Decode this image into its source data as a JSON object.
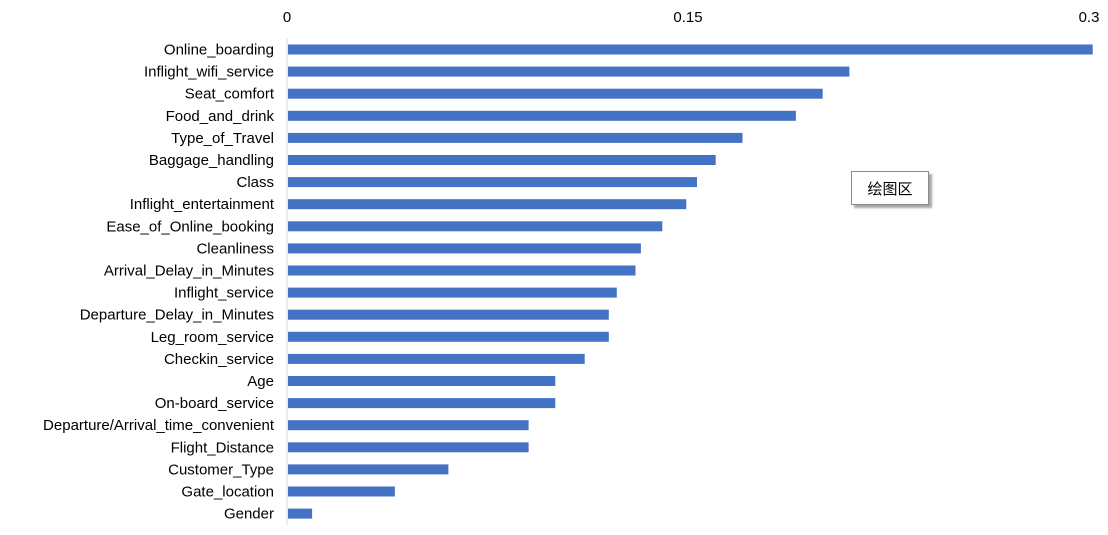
{
  "chart_data": {
    "type": "bar",
    "orientation": "horizontal",
    "title": "",
    "xlabel": "",
    "ylabel": "",
    "xlim": [
      0,
      0.3
    ],
    "x_ticks": [
      "0",
      "0.15",
      "0.3"
    ],
    "x_tick_values": [
      0,
      0.15,
      0.3
    ],
    "axis_position": "top",
    "grid": false,
    "bar_color": "#4472C4",
    "axis_color": "#d9d9d9",
    "categories": [
      "Online_boarding",
      "Inflight_wifi_service",
      "Seat_comfort",
      "Food_and_drink",
      "Type_of_Travel",
      "Baggage_handling",
      "Class",
      "Inflight_entertainment",
      "Ease_of_Online_booking",
      "Cleanliness",
      "Arrival_Delay_in_Minutes",
      "Inflight_service",
      "Departure_Delay_in_Minutes",
      "Leg_room_service",
      "Checkin_service",
      "Age",
      "On-board_service",
      "Departure/Arrival_time_convenient",
      "Flight_Distance",
      "Customer_Type",
      "Gate_location",
      "Gender"
    ],
    "values": [
      0.301,
      0.21,
      0.2,
      0.19,
      0.17,
      0.16,
      0.153,
      0.149,
      0.14,
      0.132,
      0.13,
      0.123,
      0.12,
      0.12,
      0.111,
      0.1,
      0.1,
      0.09,
      0.09,
      0.06,
      0.04,
      0.009
    ]
  },
  "tooltip": {
    "text": "绘图区"
  }
}
